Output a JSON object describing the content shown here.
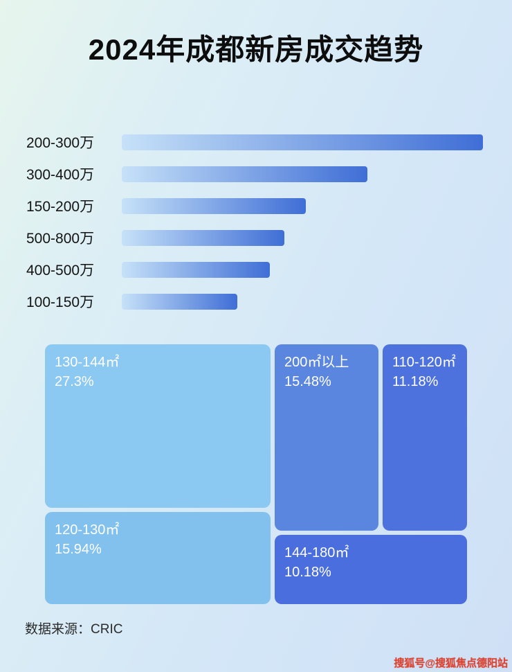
{
  "page": {
    "title": "2024年成都新房成交趋势",
    "source_label": "数据来源：CRIC",
    "watermark": "搜狐号@搜狐焦点德阳站"
  },
  "colors": {
    "background_gradient": [
      "#e7f5ed",
      "#d4e7f7",
      "#cfe0f6"
    ],
    "bar_gradient_start": "#c6e1f8",
    "bar_gradient_end": "#3f6ed6",
    "treemap_block_1": "#8bc8f2",
    "treemap_block_2": "#82c1ee",
    "treemap_block_3": "#5b86df",
    "treemap_block_4": "#4d72de",
    "treemap_block_5": "#4a6ede",
    "title_color": "#0d0d0d",
    "watermark_color": "#e1432f"
  },
  "chart_data": [
    {
      "type": "bar",
      "orientation": "horizontal",
      "categories": [
        "200-300万",
        "300-400万",
        "150-200万",
        "500-800万",
        "400-500万",
        "100-150万"
      ],
      "values": [
        100,
        68,
        51,
        45,
        41,
        32
      ],
      "values_unit": "relative bar length, % of longest bar (no numeric axis shown in chart)",
      "xlabel": "",
      "ylabel": "",
      "grid": false,
      "legend": false
    },
    {
      "type": "treemap",
      "items": [
        {
          "label": "130-144㎡",
          "value": 27.3,
          "pct": "27.3%"
        },
        {
          "label": "120-130㎡",
          "value": 15.94,
          "pct": "15.94%"
        },
        {
          "label": "200㎡以上",
          "value": 15.48,
          "pct": "15.48%"
        },
        {
          "label": "110-120㎡",
          "value": 11.18,
          "pct": "11.18%"
        },
        {
          "label": "144-180㎡",
          "value": 10.18,
          "pct": "10.18%"
        }
      ],
      "value_unit": "% share of transactions",
      "legend": false
    }
  ]
}
